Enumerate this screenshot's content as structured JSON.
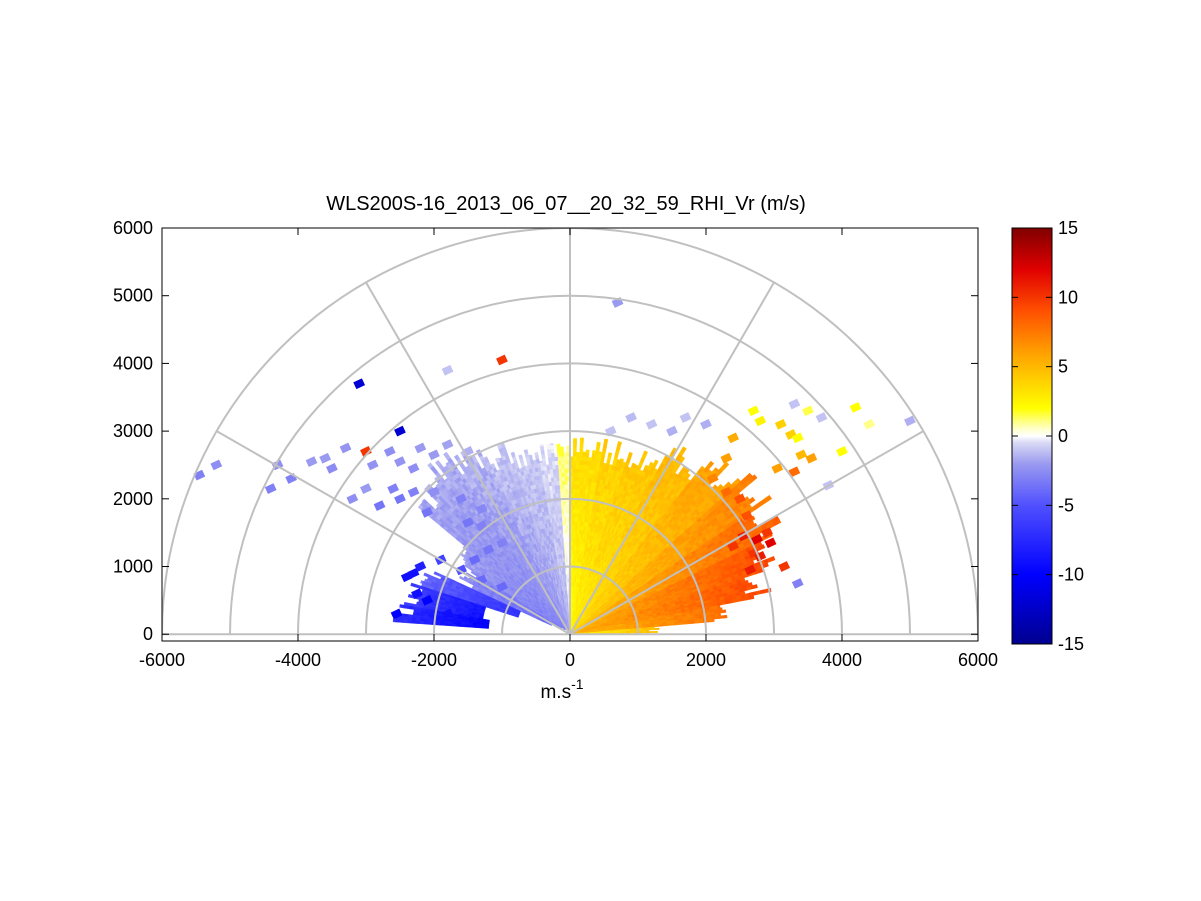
{
  "chart_data": {
    "type": "heatmap",
    "subtype": "polar-rhi",
    "title": "WLS200S-16_2013_06_07__20_32_59_RHI_Vr (m/s)",
    "xlabel_base": "m.s",
    "xlabel_sup": "-1",
    "ylabel": "",
    "xlim": [
      -6000,
      6000
    ],
    "ylim": [
      -100,
      6000
    ],
    "xticks": [
      -6000,
      -4000,
      -2000,
      0,
      2000,
      4000,
      6000
    ],
    "xtick_labels": [
      "-6000",
      "-4000",
      "-2000",
      "0",
      "2000",
      "4000",
      "6000"
    ],
    "yticks": [
      0,
      1000,
      2000,
      3000,
      4000,
      5000,
      6000
    ],
    "ytick_labels": [
      "0",
      "1000",
      "2000",
      "3000",
      "4000",
      "5000",
      "6000"
    ],
    "range_rings": [
      1000,
      2000,
      3000,
      4000,
      5000,
      6000
    ],
    "spokes_deg": [
      30,
      60,
      90,
      120,
      150
    ],
    "colorbar": {
      "range": [
        -15,
        15
      ],
      "ticks": [
        15,
        10,
        5,
        0,
        -5,
        -10,
        -15
      ],
      "tick_labels": [
        "15",
        "10",
        "5",
        "0",
        "-5",
        "-10",
        "-15"
      ],
      "stops": [
        {
          "v": -15,
          "color": "#00008f"
        },
        {
          "v": -10,
          "color": "#0000ff"
        },
        {
          "v": -5,
          "color": "#5050ff"
        },
        {
          "v": -2,
          "color": "#9a9af0"
        },
        {
          "v": -0.5,
          "color": "#d8d8f5"
        },
        {
          "v": 0,
          "color": "#ffffff"
        },
        {
          "v": 0.6,
          "color": "#ffffc0"
        },
        {
          "v": 2,
          "color": "#ffff00"
        },
        {
          "v": 4,
          "color": "#ffd000"
        },
        {
          "v": 6,
          "color": "#ffa000"
        },
        {
          "v": 9,
          "color": "#ff5000"
        },
        {
          "v": 12,
          "color": "#e00000"
        },
        {
          "v": 15,
          "color": "#800000"
        }
      ]
    },
    "sectors": [
      {
        "az": [
          86,
          90
        ],
        "r": [
          50,
          2900
        ],
        "v": [
          2,
          3.5
        ]
      },
      {
        "az": [
          80,
          86
        ],
        "r": [
          50,
          2880
        ],
        "v": [
          2.2,
          3.6
        ]
      },
      {
        "az": [
          72,
          80
        ],
        "r": [
          50,
          2880
        ],
        "v": [
          2.5,
          4.2
        ]
      },
      {
        "az": [
          62,
          72
        ],
        "r": [
          50,
          2950
        ],
        "v": [
          2.8,
          4.6
        ]
      },
      {
        "az": [
          52,
          62
        ],
        "r": [
          50,
          3200
        ],
        "v": [
          3.2,
          5.2
        ]
      },
      {
        "az": [
          42,
          52
        ],
        "r": [
          50,
          3400
        ],
        "v": [
          3.5,
          6.2
        ]
      },
      {
        "az": [
          34,
          42
        ],
        "r": [
          50,
          3600
        ],
        "v": [
          4,
          7.5
        ]
      },
      {
        "az": [
          26,
          34
        ],
        "r": [
          50,
          3450
        ],
        "v": [
          4.8,
          8.5
        ]
      },
      {
        "az": [
          18,
          26
        ],
        "r": [
          50,
          3250
        ],
        "v": [
          5.2,
          9.5
        ]
      },
      {
        "az": [
          11,
          18
        ],
        "r": [
          50,
          3000
        ],
        "v": [
          5.5,
          9.5
        ]
      },
      {
        "az": [
          5,
          11
        ],
        "r": [
          50,
          2300
        ],
        "v": [
          5,
          8
        ]
      },
      {
        "az": [
          1,
          5
        ],
        "r": [
          50,
          1300
        ],
        "v": [
          2.5,
          5
        ]
      },
      {
        "az": [
          90,
          94
        ],
        "r": [
          50,
          2900
        ],
        "v": [
          -0.6,
          1.5
        ]
      },
      {
        "az": [
          94,
          100
        ],
        "r": [
          50,
          2850
        ],
        "v": [
          -1.4,
          -0.4
        ]
      },
      {
        "az": [
          100,
          108
        ],
        "r": [
          50,
          2850
        ],
        "v": [
          -1.8,
          -0.8
        ]
      },
      {
        "az": [
          108,
          116
        ],
        "r": [
          50,
          2950
        ],
        "v": [
          -2.2,
          -1
        ]
      },
      {
        "az": [
          116,
          124
        ],
        "r": [
          60,
          3100
        ],
        "v": [
          -2.6,
          -1.3
        ]
      },
      {
        "az": [
          124,
          132
        ],
        "r": [
          80,
          3300
        ],
        "v": [
          -2.8,
          -1.5
        ]
      },
      {
        "az": [
          132,
          140
        ],
        "r": [
          100,
          3000
        ],
        "v": [
          -3,
          -1.6
        ]
      },
      {
        "az": [
          140,
          147
        ],
        "r": [
          150,
          2000
        ],
        "v": [
          -3.2,
          -1.8
        ]
      },
      {
        "az": [
          147,
          155
        ],
        "r": [
          300,
          1800
        ],
        "v": [
          -4,
          -2.5
        ]
      },
      {
        "az": [
          155,
          162
        ],
        "r": [
          800,
          2300
        ],
        "v": [
          -7,
          -4
        ]
      },
      {
        "az": [
          162,
          170
        ],
        "r": [
          1300,
          2450
        ],
        "v": [
          -9,
          -6
        ]
      },
      {
        "az": [
          170,
          176
        ],
        "r": [
          1200,
          2600
        ],
        "v": [
          -10,
          -7
        ]
      }
    ],
    "scatter_cells": [
      {
        "x": 700,
        "y": 4900,
        "v": -2
      },
      {
        "x": -1000,
        "y": 4050,
        "v": 10
      },
      {
        "x": -3100,
        "y": 3700,
        "v": -12
      },
      {
        "x": -2500,
        "y": 3000,
        "v": -12
      },
      {
        "x": -3000,
        "y": 2700,
        "v": 10
      },
      {
        "x": -1800,
        "y": 3900,
        "v": -1
      },
      {
        "x": -5200,
        "y": 2500,
        "v": -2.5
      },
      {
        "x": -5450,
        "y": 2350,
        "v": -3
      },
      {
        "x": -4300,
        "y": 2500,
        "v": -2.5
      },
      {
        "x": -4100,
        "y": 2300,
        "v": -3
      },
      {
        "x": -4400,
        "y": 2150,
        "v": -3
      },
      {
        "x": -3800,
        "y": 2550,
        "v": -2
      },
      {
        "x": -3200,
        "y": 2000,
        "v": -2.5
      },
      {
        "x": -3000,
        "y": 2150,
        "v": -2
      },
      {
        "x": 5000,
        "y": 3150,
        "v": -1.5
      },
      {
        "x": 4400,
        "y": 3100,
        "v": 1
      },
      {
        "x": 4200,
        "y": 3350,
        "v": 2
      },
      {
        "x": 3400,
        "y": 2650,
        "v": 5
      },
      {
        "x": 3500,
        "y": 3300,
        "v": 1.5
      },
      {
        "x": 3700,
        "y": 3200,
        "v": -1
      },
      {
        "x": 3800,
        "y": 2200,
        "v": -1
      },
      {
        "x": 4000,
        "y": 2700,
        "v": 2
      },
      {
        "x": 2500,
        "y": 2000,
        "v": 9
      },
      {
        "x": 2600,
        "y": 1750,
        "v": 9
      },
      {
        "x": 2550,
        "y": 1450,
        "v": 11
      },
      {
        "x": 2400,
        "y": 1300,
        "v": 10
      },
      {
        "x": 2650,
        "y": 950,
        "v": 11
      },
      {
        "x": 2700,
        "y": 1200,
        "v": 10
      },
      {
        "x": 2650,
        "y": 1600,
        "v": 8
      },
      {
        "x": 2750,
        "y": 1400,
        "v": 12
      },
      {
        "x": 2900,
        "y": 1500,
        "v": 10
      },
      {
        "x": 2950,
        "y": 1350,
        "v": 12
      },
      {
        "x": 2800,
        "y": 1150,
        "v": 11
      },
      {
        "x": 3150,
        "y": 1000,
        "v": 10
      },
      {
        "x": 3350,
        "y": 750,
        "v": -3
      },
      {
        "x": 2700,
        "y": 3300,
        "v": 2
      },
      {
        "x": 2800,
        "y": 3150,
        "v": 2.5
      },
      {
        "x": 3100,
        "y": 3100,
        "v": 4
      },
      {
        "x": 3250,
        "y": 2950,
        "v": 4
      },
      {
        "x": 3350,
        "y": 2900,
        "v": 2
      },
      {
        "x": 2400,
        "y": 2900,
        "v": 5.5
      },
      {
        "x": 2300,
        "y": 2600,
        "v": 6
      },
      {
        "x": 1700,
        "y": 3200,
        "v": -1
      },
      {
        "x": 1500,
        "y": 3000,
        "v": -1.5
      },
      {
        "x": 1200,
        "y": 3100,
        "v": -1
      },
      {
        "x": 900,
        "y": 3200,
        "v": -1.2
      },
      {
        "x": 600,
        "y": 3000,
        "v": -1
      },
      {
        "x": 2000,
        "y": 3100,
        "v": -1.5
      },
      {
        "x": 3300,
        "y": 3400,
        "v": -1
      },
      {
        "x": 3050,
        "y": 2450,
        "v": 6
      },
      {
        "x": 3300,
        "y": 2400,
        "v": 8
      },
      {
        "x": 3550,
        "y": 2600,
        "v": 6
      },
      {
        "x": 2100,
        "y": 2300,
        "v": 7
      },
      {
        "x": 2300,
        "y": 2100,
        "v": 8
      },
      {
        "x": -2500,
        "y": 2000,
        "v": -3.5
      },
      {
        "x": -2600,
        "y": 2150,
        "v": -3
      },
      {
        "x": -2300,
        "y": 2100,
        "v": -3
      },
      {
        "x": -2800,
        "y": 1900,
        "v": -3.5
      },
      {
        "x": -2100,
        "y": 1800,
        "v": -3.5
      },
      {
        "x": -2000,
        "y": 2100,
        "v": -2.5
      },
      {
        "x": -2500,
        "y": 2550,
        "v": -2.2
      },
      {
        "x": -2300,
        "y": 2450,
        "v": -2.5
      },
      {
        "x": -2900,
        "y": 2500,
        "v": -2.3
      },
      {
        "x": -3500,
        "y": 2450,
        "v": -2.6
      },
      {
        "x": -3600,
        "y": 2600,
        "v": -2
      },
      {
        "x": -3300,
        "y": 2750,
        "v": -2.2
      },
      {
        "x": -2650,
        "y": 2700,
        "v": -2.5
      },
      {
        "x": -2000,
        "y": 2650,
        "v": -2
      },
      {
        "x": -1800,
        "y": 2800,
        "v": -1.8
      },
      {
        "x": -2200,
        "y": 2750,
        "v": -2
      },
      {
        "x": -1500,
        "y": 2700,
        "v": -1.5
      },
      {
        "x": -1600,
        "y": 2000,
        "v": -3
      },
      {
        "x": -1300,
        "y": 1850,
        "v": -2.8
      },
      {
        "x": -1500,
        "y": 1650,
        "v": -3.5
      },
      {
        "x": -1300,
        "y": 1600,
        "v": -3
      },
      {
        "x": -2400,
        "y": 850,
        "v": -9
      },
      {
        "x": -2250,
        "y": 600,
        "v": -9
      },
      {
        "x": -2100,
        "y": 500,
        "v": -10
      },
      {
        "x": -2300,
        "y": 900,
        "v": -9
      },
      {
        "x": -2200,
        "y": 1000,
        "v": -8
      },
      {
        "x": -1900,
        "y": 1100,
        "v": -6
      },
      {
        "x": -1800,
        "y": 300,
        "v": -9
      },
      {
        "x": -2550,
        "y": 300,
        "v": -10
      },
      {
        "x": -1600,
        "y": 950,
        "v": -5
      },
      {
        "x": -1400,
        "y": 1100,
        "v": -4
      },
      {
        "x": -1200,
        "y": 1250,
        "v": -3.5
      },
      {
        "x": -1000,
        "y": 1350,
        "v": -3
      },
      {
        "x": -1300,
        "y": 800,
        "v": -4
      },
      {
        "x": -1000,
        "y": 700,
        "v": -4
      }
    ]
  }
}
